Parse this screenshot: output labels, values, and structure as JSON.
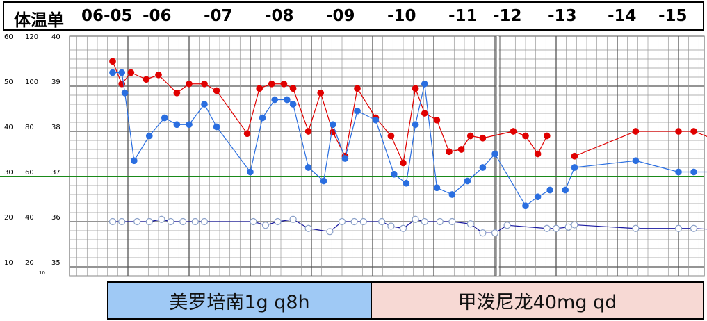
{
  "header": {
    "title": "体温单",
    "dates": [
      "06-05",
      "-06",
      "-07",
      "-08",
      "-09",
      "-10",
      "-11",
      "-12",
      "-13",
      "-14",
      "-15"
    ]
  },
  "axis": {
    "left_labels": [
      [
        "10",
        "20",
        "35"
      ],
      [
        "20",
        "40",
        "36"
      ],
      [
        "30",
        "60",
        "37"
      ],
      [
        "40",
        "80",
        "38"
      ],
      [
        "50",
        "100",
        "39"
      ],
      [
        "60",
        "120",
        "40"
      ]
    ],
    "stray_label": "10"
  },
  "drugs": [
    {
      "label": "美罗培南1g q8h",
      "color": "#9fc9f5"
    },
    {
      "label": "甲泼尼龙40mg qd",
      "color": "#f7d9d4"
    }
  ],
  "chart_data": {
    "type": "line",
    "xlim": [
      0,
      13
    ],
    "x_unit": "days since 06-05 00:00",
    "ylim": [
      35,
      40
    ],
    "reference_line": {
      "value": 37.0,
      "color": "#1a8a1a"
    },
    "colors": {
      "grid": "#999999",
      "grid_major": "#555555"
    },
    "series": [
      {
        "color": "#e00000",
        "marker": "filled",
        "points": [
          [
            0.0,
            39.55
          ],
          [
            0.15,
            39.05
          ],
          [
            0.3,
            39.3
          ],
          [
            0.55,
            39.15
          ],
          [
            0.75,
            39.25
          ],
          [
            1.05,
            38.85
          ],
          [
            1.25,
            39.05
          ],
          [
            1.5,
            39.05
          ],
          [
            1.7,
            38.9
          ],
          [
            2.2,
            37.95
          ],
          [
            2.4,
            38.95
          ],
          [
            2.6,
            39.05
          ],
          [
            2.8,
            39.05
          ],
          [
            2.95,
            38.95
          ],
          [
            3.2,
            38.0
          ],
          [
            3.4,
            38.85
          ],
          [
            3.6,
            37.98
          ],
          [
            3.8,
            37.45
          ],
          [
            4.0,
            38.95
          ],
          [
            4.3,
            38.3
          ],
          [
            4.55,
            37.9
          ],
          [
            4.75,
            37.3
          ],
          [
            4.95,
            38.95
          ],
          [
            5.1,
            38.4
          ],
          [
            5.3,
            38.25
          ],
          [
            5.5,
            37.55
          ],
          [
            5.7,
            37.6
          ],
          [
            5.85,
            37.9
          ],
          [
            6.05,
            37.85
          ],
          [
            6.55,
            38.0
          ],
          [
            6.75,
            37.9
          ],
          [
            6.95,
            37.5
          ],
          [
            7.1,
            37.9
          ],
          [
            7.55,
            37.45
          ],
          [
            8.55,
            38.0
          ],
          [
            9.25,
            38.0
          ],
          [
            9.5,
            38.0
          ],
          [
            10.55,
            37.45
          ]
        ]
      },
      {
        "color": "#2a6ee0",
        "marker": "filled",
        "points": [
          [
            0.0,
            39.3
          ],
          [
            0.15,
            39.3
          ],
          [
            0.2,
            38.85
          ],
          [
            0.35,
            37.35
          ],
          [
            0.6,
            37.9
          ],
          [
            0.85,
            38.3
          ],
          [
            1.05,
            38.15
          ],
          [
            1.25,
            38.15
          ],
          [
            1.5,
            38.6
          ],
          [
            1.7,
            38.1
          ],
          [
            2.25,
            37.1
          ],
          [
            2.45,
            38.3
          ],
          [
            2.65,
            38.7
          ],
          [
            2.85,
            38.7
          ],
          [
            2.95,
            38.6
          ],
          [
            3.2,
            37.2
          ],
          [
            3.45,
            36.9
          ],
          [
            3.6,
            38.15
          ],
          [
            3.8,
            37.4
          ],
          [
            4.0,
            38.45
          ],
          [
            4.3,
            38.25
          ],
          [
            4.6,
            37.05
          ],
          [
            4.8,
            36.85
          ],
          [
            4.95,
            38.15
          ],
          [
            5.1,
            39.05
          ],
          [
            5.3,
            36.75
          ],
          [
            5.55,
            36.6
          ],
          [
            5.8,
            36.9
          ],
          [
            6.05,
            37.2
          ],
          [
            6.25,
            37.5
          ],
          [
            6.75,
            36.35
          ],
          [
            6.95,
            36.55
          ],
          [
            7.15,
            36.7
          ],
          [
            7.4,
            36.7
          ],
          [
            7.55,
            37.2
          ],
          [
            8.55,
            37.35
          ],
          [
            9.25,
            37.1
          ],
          [
            9.5,
            37.1
          ],
          [
            10.55,
            37.1
          ]
        ]
      },
      {
        "color": "#1a1aa0",
        "marker": "hollow",
        "points": [
          [
            0.0,
            36.0
          ],
          [
            0.15,
            36.0
          ],
          [
            0.4,
            36.0
          ],
          [
            0.6,
            36.0
          ],
          [
            0.8,
            36.05
          ],
          [
            0.95,
            36.0
          ],
          [
            1.15,
            36.0
          ],
          [
            1.35,
            36.0
          ],
          [
            1.5,
            36.0
          ],
          [
            2.3,
            36.0
          ],
          [
            2.5,
            35.92
          ],
          [
            2.7,
            36.0
          ],
          [
            2.95,
            36.05
          ],
          [
            3.2,
            35.85
          ],
          [
            3.55,
            35.78
          ],
          [
            3.75,
            36.0
          ],
          [
            3.95,
            36.0
          ],
          [
            4.1,
            36.0
          ],
          [
            4.4,
            36.0
          ],
          [
            4.55,
            35.9
          ],
          [
            4.75,
            35.85
          ],
          [
            4.95,
            36.05
          ],
          [
            5.1,
            36.0
          ],
          [
            5.35,
            36.0
          ],
          [
            5.55,
            36.0
          ],
          [
            5.85,
            35.95
          ],
          [
            6.05,
            35.75
          ],
          [
            6.25,
            35.75
          ],
          [
            6.45,
            35.92
          ],
          [
            7.1,
            35.85
          ],
          [
            7.25,
            35.85
          ],
          [
            7.45,
            35.88
          ],
          [
            7.55,
            35.93
          ],
          [
            8.55,
            35.85
          ],
          [
            9.25,
            35.85
          ],
          [
            9.5,
            35.85
          ],
          [
            10.55,
            35.78
          ]
        ]
      }
    ]
  }
}
